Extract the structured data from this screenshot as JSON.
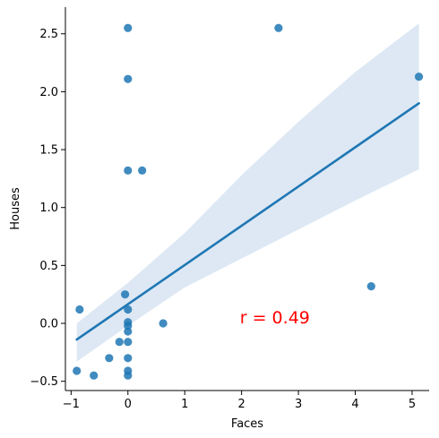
{
  "chart_data": {
    "type": "scatter",
    "xlabel": "Faces",
    "ylabel": "Houses",
    "xlim": [
      -1.1,
      5.3
    ],
    "ylim": [
      -0.58,
      2.73
    ],
    "xticks": [
      -1,
      0,
      1,
      2,
      3,
      4,
      5
    ],
    "yticks": [
      -0.5,
      0.0,
      0.5,
      1.0,
      1.5,
      2.0,
      2.5
    ],
    "xtick_labels": [
      "−1",
      "0",
      "1",
      "2",
      "3",
      "4",
      "5"
    ],
    "ytick_labels": [
      "−0.5",
      "0.0",
      "0.5",
      "1.0",
      "1.5",
      "2.0",
      "2.5"
    ],
    "grid": false,
    "points": [
      {
        "x": -0.9,
        "y": -0.41
      },
      {
        "x": -0.85,
        "y": 0.12
      },
      {
        "x": -0.6,
        "y": -0.45
      },
      {
        "x": -0.33,
        "y": -0.3
      },
      {
        "x": -0.15,
        "y": -0.16
      },
      {
        "x": -0.05,
        "y": 0.25
      },
      {
        "x": 0.0,
        "y": 2.55
      },
      {
        "x": 0.0,
        "y": 2.11
      },
      {
        "x": 0.0,
        "y": 1.32
      },
      {
        "x": 0.0,
        "y": 0.12
      },
      {
        "x": 0.0,
        "y": 0.01
      },
      {
        "x": 0.0,
        "y": -0.02
      },
      {
        "x": 0.0,
        "y": -0.07
      },
      {
        "x": 0.0,
        "y": -0.16
      },
      {
        "x": 0.0,
        "y": -0.3
      },
      {
        "x": 0.0,
        "y": -0.41
      },
      {
        "x": 0.0,
        "y": -0.45
      },
      {
        "x": 0.25,
        "y": 1.32
      },
      {
        "x": 0.62,
        "y": 0.0
      },
      {
        "x": 2.65,
        "y": 2.55
      },
      {
        "x": 4.28,
        "y": 0.32
      },
      {
        "x": 5.12,
        "y": 2.13
      }
    ],
    "regression": {
      "x": [
        -0.9,
        5.12
      ],
      "y": [
        -0.14,
        1.9
      ]
    },
    "confidence_band": {
      "x": [
        -0.9,
        0.0,
        1.0,
        2.0,
        3.0,
        4.0,
        5.12
      ],
      "upper": [
        0.0,
        0.35,
        0.78,
        1.28,
        1.74,
        2.17,
        2.59
      ],
      "lower": [
        -0.33,
        -0.02,
        0.31,
        0.56,
        0.81,
        1.06,
        1.33
      ]
    },
    "annotation": {
      "text": "r = 0.49",
      "x": 1.97,
      "y": 0.0
    },
    "colors": {
      "points": "#1f77b4",
      "line": "#1f77b4",
      "band": "#dde8f4",
      "annotation": "#ff0000"
    }
  }
}
